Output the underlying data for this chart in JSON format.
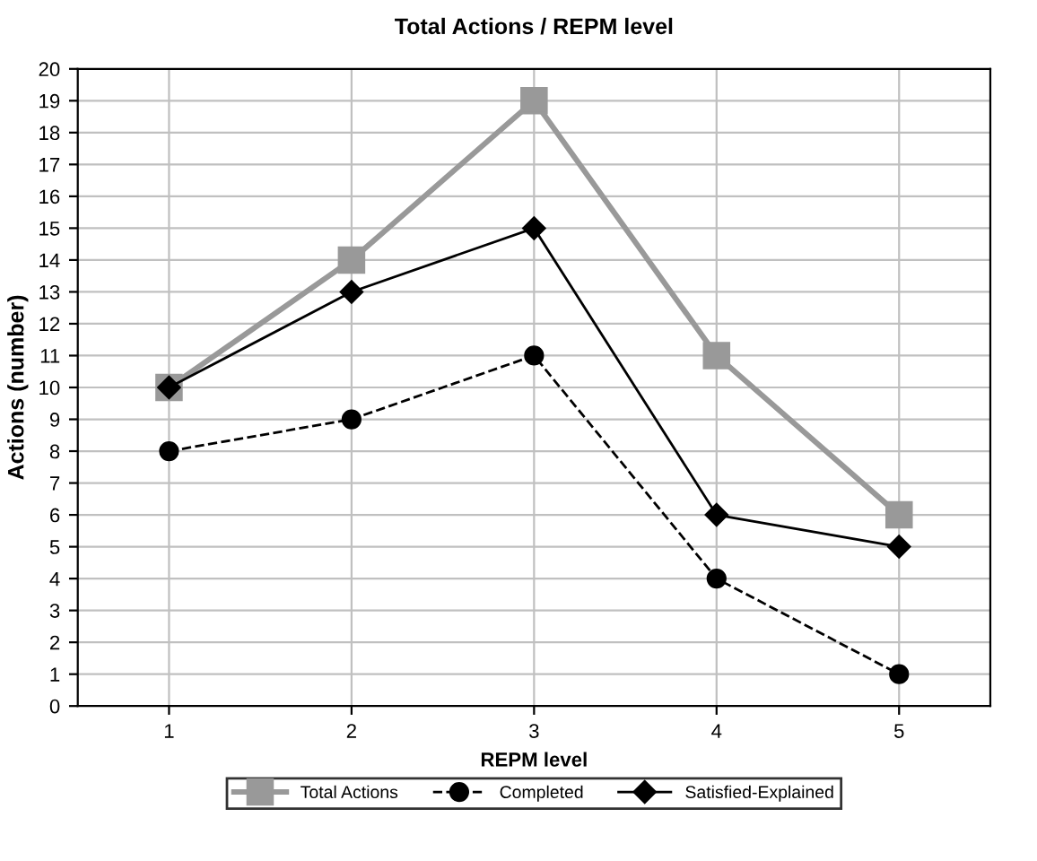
{
  "chart_data": {
    "type": "line",
    "title": "Total Actions / REPM level",
    "xlabel": "REPM level",
    "ylabel": "Actions (number)",
    "categories": [
      "1",
      "2",
      "3",
      "4",
      "5"
    ],
    "series": [
      {
        "name": "Total Actions",
        "color": "#999999",
        "values": [
          10,
          14,
          19,
          11,
          6
        ],
        "marker": "square",
        "line_style": "solid"
      },
      {
        "name": "Completed",
        "color": "#000000",
        "values": [
          8,
          9,
          11,
          4,
          1
        ],
        "marker": "circle",
        "line_style": "dashed"
      },
      {
        "name": "Satisfied-Explained",
        "color": "#000000",
        "values": [
          10,
          13,
          15,
          6,
          5
        ],
        "marker": "diamond",
        "line_style": "solid"
      }
    ],
    "ylim": [
      0,
      20
    ],
    "yticks": [
      0,
      1,
      2,
      3,
      4,
      5,
      6,
      7,
      8,
      9,
      10,
      11,
      12,
      13,
      14,
      15,
      16,
      17,
      18,
      19,
      20
    ],
    "grid": true,
    "legend": "bottom"
  }
}
